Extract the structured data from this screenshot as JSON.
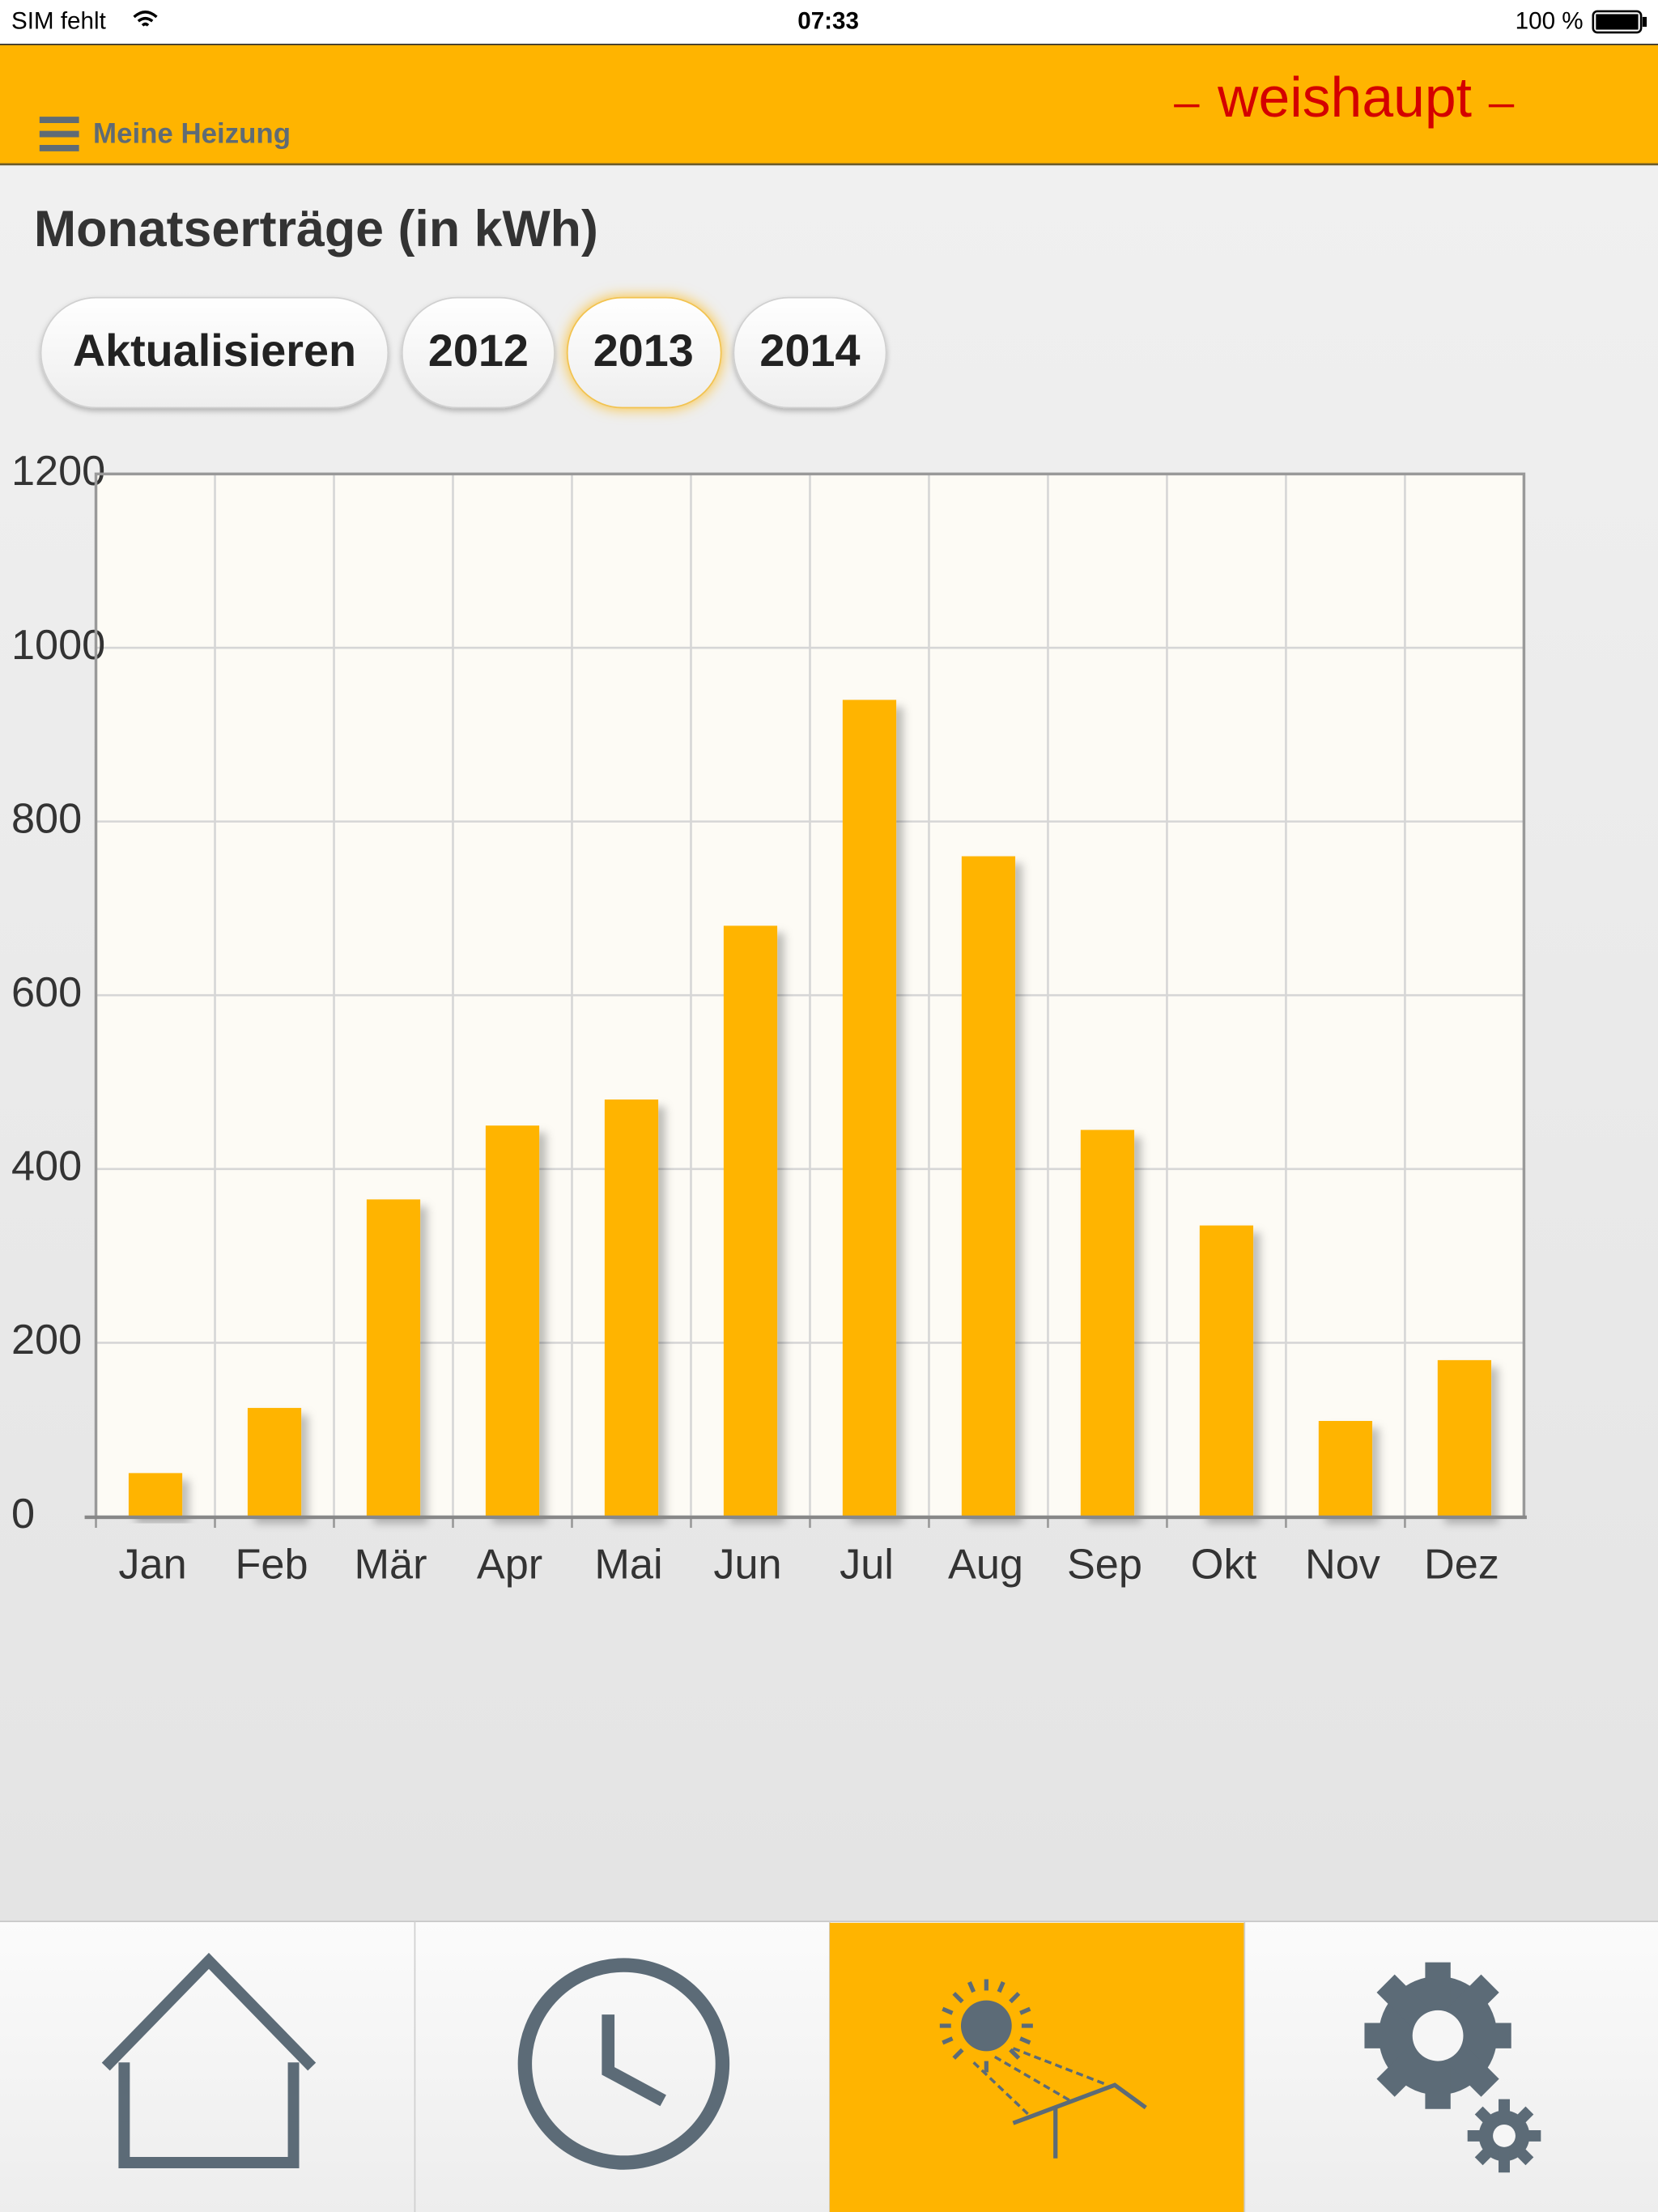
{
  "status_bar": {
    "carrier": "SIM fehlt",
    "time": "07:33",
    "battery": "100 %"
  },
  "header": {
    "menu_label": "Meine Heizung",
    "logo": "weishaupt"
  },
  "controls": {
    "buttons": [
      "Aktualisieren",
      "2012",
      "2013",
      "2014"
    ]
  },
  "chart_data": {
    "type": "bar",
    "title": "Monatserträge (in kWh)",
    "categories": [
      "Jan",
      "Feb",
      "Mär",
      "Apr",
      "Mai",
      "Jun",
      "Jul",
      "Aug",
      "Sep",
      "Okt",
      "Nov",
      "Dez"
    ],
    "values": [
      50,
      125,
      365,
      450,
      480,
      680,
      940,
      760,
      445,
      335,
      110,
      180
    ],
    "color": "#ffb400",
    "ylim": [
      0,
      1200
    ],
    "yticks": [
      0,
      200,
      400,
      600,
      800,
      1000,
      1200
    ],
    "grid": true
  }
}
